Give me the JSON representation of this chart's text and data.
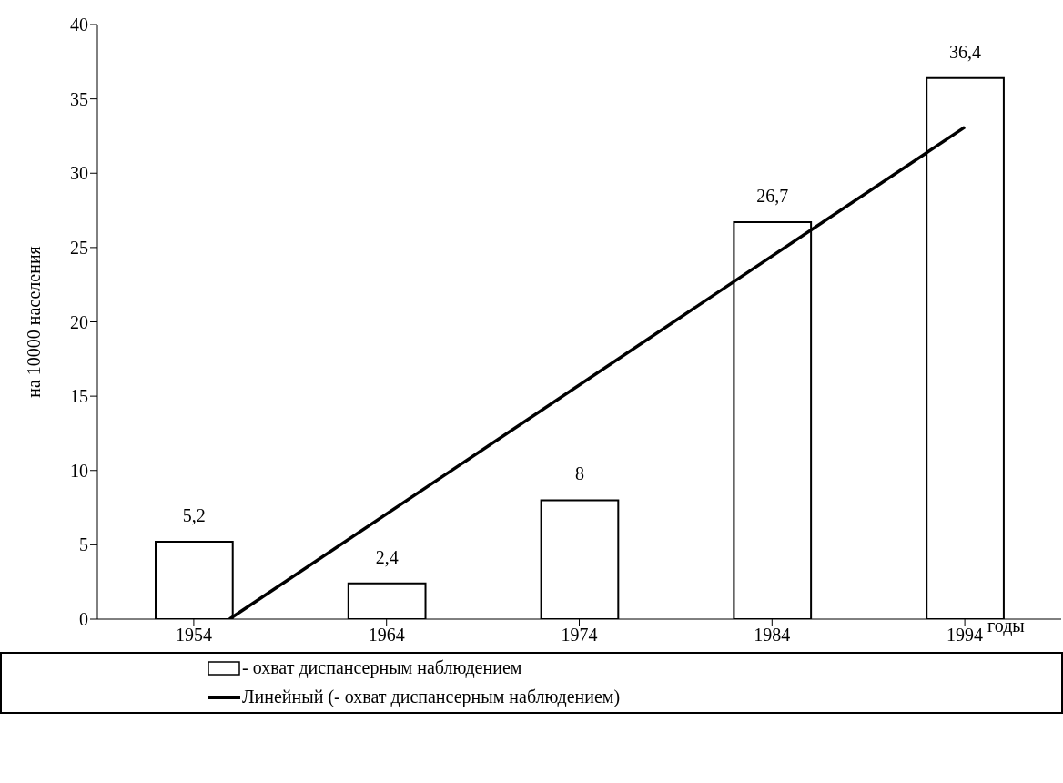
{
  "chart_data": {
    "type": "bar",
    "ylabel": "на 10000 населения",
    "xlabel": "годы",
    "x": [
      1954,
      1964,
      1974,
      1984,
      1994
    ],
    "xlim": [
      1949,
      1999
    ],
    "xticks": [
      1954,
      1964,
      1974,
      1984,
      1994
    ],
    "ylim": [
      0,
      40
    ],
    "yticks": [
      0,
      5,
      10,
      15,
      20,
      25,
      30,
      35,
      40
    ],
    "series": [
      {
        "name": "- охват диспансерным наблюдением",
        "color": "#ffffff",
        "values": [
          5.2,
          2.4,
          8,
          26.7,
          36.4
        ],
        "value_labels": [
          "5,2",
          "2,4",
          "8",
          "26,7",
          "36,4"
        ]
      },
      {
        "name": "Линейный (- охват диспансерным наблюдением)",
        "type": "line",
        "color": "#000000",
        "x": [
          1955.85,
          1994
        ],
        "values": [
          0,
          33.1
        ],
        "marker": "none",
        "line_style": "solid"
      }
    ],
    "grid": false,
    "legend": "bottom"
  }
}
